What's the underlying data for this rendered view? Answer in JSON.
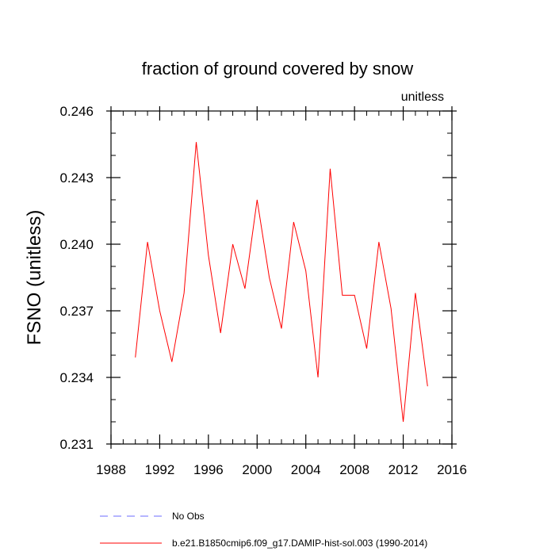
{
  "chart_data": {
    "type": "line",
    "title": "fraction of ground covered by snow",
    "units_label": "unitless",
    "ylabel": "FSNO  (unitless)",
    "xlabel": "",
    "xlim": [
      1988,
      2016
    ],
    "ylim": [
      0.231,
      0.246
    ],
    "x_ticks": [
      1988,
      1992,
      1996,
      2000,
      2004,
      2008,
      2012,
      2016
    ],
    "x_tick_labels": [
      "1988",
      "1992",
      "1996",
      "2000",
      "2004",
      "2008",
      "2012",
      "2016"
    ],
    "y_ticks": [
      0.231,
      0.234,
      0.237,
      0.24,
      0.243,
      0.246
    ],
    "y_tick_labels": [
      "0.231",
      "0.234",
      "0.237",
      "0.240",
      "0.243",
      "0.246"
    ],
    "grid": false,
    "legend_position": "bottom",
    "series": [
      {
        "name": "b.e21.B1850cmip6.f09_g17.DAMIP-hist-sol.003 (1990-2014)",
        "color": "#ff0000",
        "style": "solid",
        "x": [
          1990,
          1991,
          1992,
          1993,
          1994,
          1995,
          1996,
          1997,
          1998,
          1999,
          2000,
          2001,
          2002,
          2003,
          2004,
          2005,
          2006,
          2007,
          2008,
          2009,
          2010,
          2011,
          2012,
          2013,
          2014
        ],
        "values": [
          0.2349,
          0.2401,
          0.237,
          0.2347,
          0.2378,
          0.2446,
          0.2395,
          0.236,
          0.24,
          0.238,
          0.242,
          0.2385,
          0.2362,
          0.241,
          0.2388,
          0.234,
          0.2434,
          0.2377,
          0.2377,
          0.2353,
          0.2401,
          0.2371,
          0.232,
          0.2378,
          0.2336
        ]
      }
    ],
    "legend": [
      {
        "label": "No Obs",
        "color": "#6b6bff",
        "style": "dashed"
      },
      {
        "label": "b.e21.B1850cmip6.f09_g17.DAMIP-hist-sol.003 (1990-2014)",
        "color": "#ff0000",
        "style": "solid"
      }
    ]
  }
}
